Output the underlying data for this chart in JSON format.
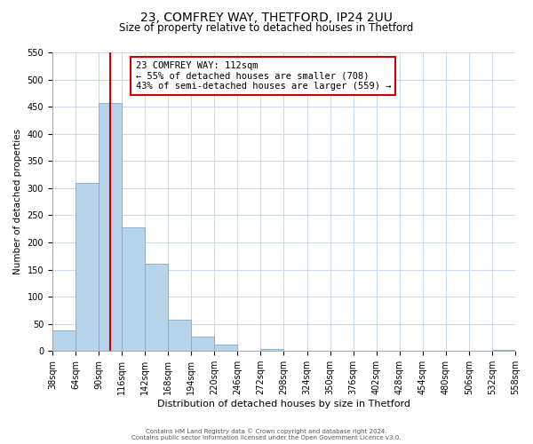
{
  "title1": "23, COMFREY WAY, THETFORD, IP24 2UU",
  "title2": "Size of property relative to detached houses in Thetford",
  "xlabel": "Distribution of detached houses by size in Thetford",
  "ylabel": "Number of detached properties",
  "bar_values": [
    38,
    310,
    456,
    228,
    160,
    57,
    26,
    12,
    0,
    3,
    0,
    0,
    0,
    0,
    0,
    0,
    0,
    0,
    0,
    2
  ],
  "bar_labels": [
    "38sqm",
    "64sqm",
    "90sqm",
    "116sqm",
    "142sqm",
    "168sqm",
    "194sqm",
    "220sqm",
    "246sqm",
    "272sqm",
    "298sqm",
    "324sqm",
    "350sqm",
    "376sqm",
    "402sqm",
    "428sqm",
    "454sqm",
    "480sqm",
    "506sqm",
    "532sqm",
    "558sqm"
  ],
  "bar_color": "#b8d4ea",
  "bar_edge_color": "#7aaece",
  "vline_color": "#cc0000",
  "vline_position": 2.5,
  "annotation_title": "23 COMFREY WAY: 112sqm",
  "annotation_line1": "← 55% of detached houses are smaller (708)",
  "annotation_line2": "43% of semi-detached houses are larger (559) →",
  "annotation_box_color": "#ffffff",
  "annotation_box_edge": "#cc0000",
  "ylim_max": 550,
  "ytick_step": 50,
  "footer1": "Contains HM Land Registry data © Crown copyright and database right 2024.",
  "footer2": "Contains public sector information licensed under the Open Government Licence v3.0.",
  "bg_color": "#ffffff",
  "grid_color": "#c8daea",
  "title1_fontsize": 10,
  "title2_fontsize": 8.5,
  "axis_label_fontsize": 7.5,
  "tick_fontsize": 7,
  "annotation_fontsize": 7.5,
  "bar_count": 20,
  "n_labels": 21
}
